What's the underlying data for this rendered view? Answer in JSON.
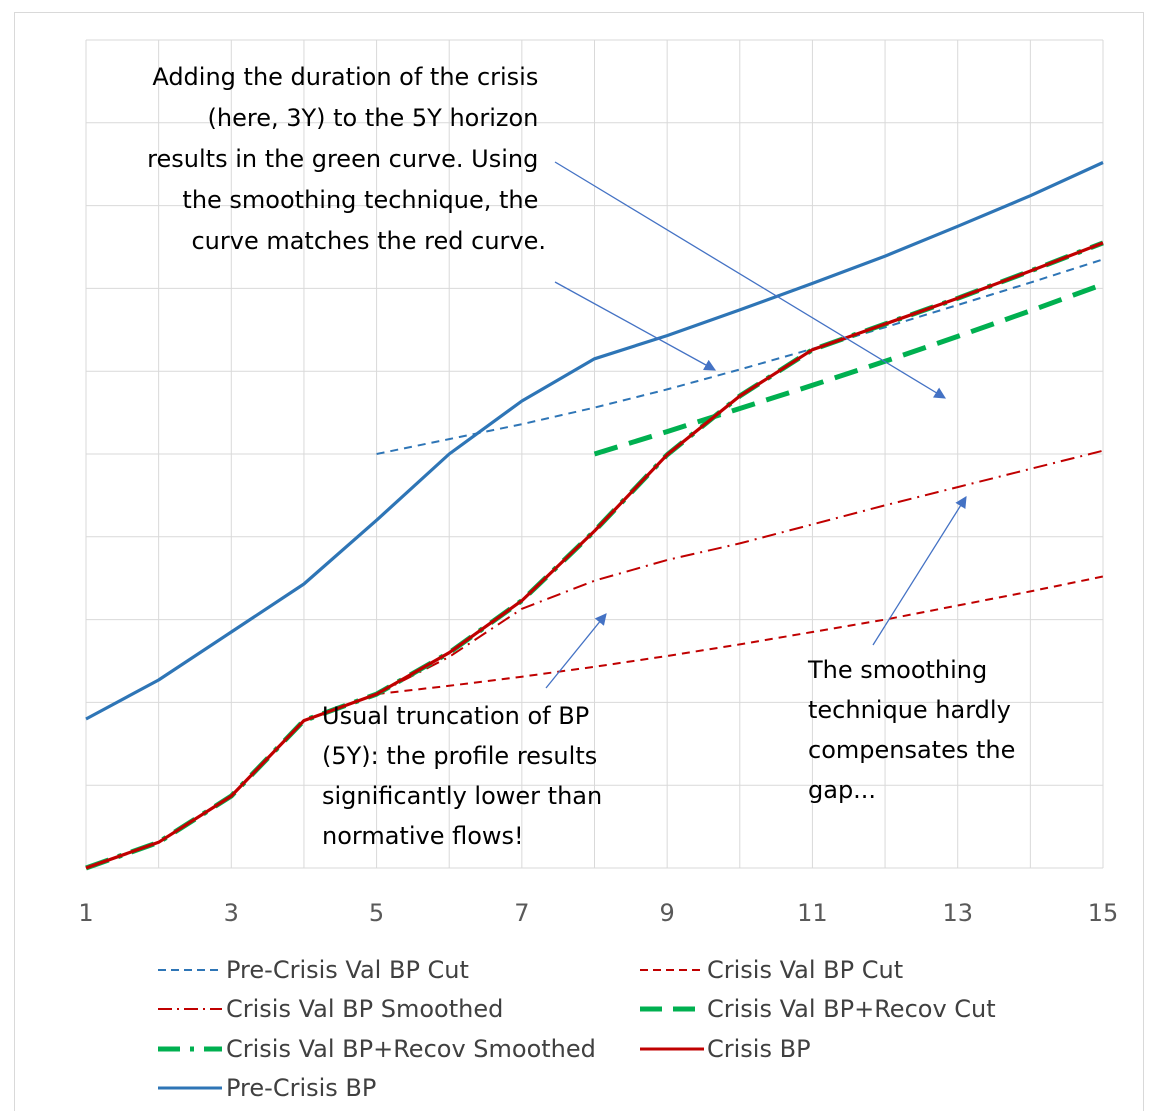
{
  "chart_data": {
    "type": "line",
    "title": "",
    "xlabel": "",
    "ylabel": "",
    "xlim": [
      1,
      15
    ],
    "ylim": [
      0,
      10
    ],
    "x_ticks": [
      "1",
      "3",
      "5",
      "7",
      "9",
      "11",
      "13",
      "15"
    ],
    "grid": true,
    "legend_position": "bottom",
    "series": [
      {
        "name": "Pre-Crisis Val BP Cut",
        "color": "#2e75b6",
        "style": "dashed",
        "x": [
          5,
          6,
          7,
          8,
          9,
          10,
          11,
          12,
          13,
          14,
          15
        ],
        "y": [
          5.0,
          5.18,
          5.36,
          5.56,
          5.78,
          6.02,
          6.27,
          6.53,
          6.8,
          7.07,
          7.35
        ]
      },
      {
        "name": "Crisis Val BP Cut",
        "color": "#c00000",
        "style": "dashed",
        "x": [
          5,
          6,
          7,
          8,
          9,
          10,
          11,
          12,
          13,
          14,
          15
        ],
        "y": [
          2.1,
          2.2,
          2.31,
          2.43,
          2.56,
          2.7,
          2.85,
          3.0,
          3.17,
          3.34,
          3.52
        ]
      },
      {
        "name": "Crisis Val BP Smoothed",
        "color": "#c00000",
        "style": "dashdot",
        "x": [
          5,
          6,
          7,
          8,
          9,
          10,
          11,
          12,
          13,
          14,
          15
        ],
        "y": [
          2.1,
          2.55,
          3.13,
          3.47,
          3.72,
          3.92,
          4.15,
          4.38,
          4.6,
          4.82,
          5.04
        ]
      },
      {
        "name": "Crisis Val BP+Recov Cut",
        "color": "#00b050",
        "style": "dashed-thick",
        "x": [
          8,
          9,
          10,
          11,
          12,
          13,
          14,
          15
        ],
        "y": [
          5.0,
          5.27,
          5.55,
          5.83,
          6.12,
          6.42,
          6.73,
          7.05
        ]
      },
      {
        "name": "Crisis Val BP+Recov Smoothed",
        "color": "#00b050",
        "style": "dashdot-thick",
        "x": [
          1,
          2,
          3,
          4,
          5,
          6,
          7,
          8,
          9,
          10,
          11,
          12,
          13,
          14,
          15
        ],
        "y": [
          0.0,
          0.31,
          0.87,
          1.78,
          2.1,
          2.6,
          3.23,
          4.07,
          4.99,
          5.7,
          6.26,
          6.57,
          6.88,
          7.21,
          7.55
        ]
      },
      {
        "name": "Crisis BP",
        "color": "#c00000",
        "style": "solid",
        "x": [
          1,
          2,
          3,
          4,
          5,
          6,
          7,
          8,
          9,
          10,
          11,
          12,
          13,
          14,
          15
        ],
        "y": [
          0.0,
          0.31,
          0.87,
          1.78,
          2.1,
          2.6,
          3.23,
          4.07,
          4.99,
          5.7,
          6.26,
          6.57,
          6.88,
          7.21,
          7.55
        ]
      },
      {
        "name": "Pre-Crisis BP",
        "color": "#2e75b6",
        "style": "solid",
        "x": [
          1,
          2,
          3,
          4,
          5,
          6,
          7,
          8,
          9,
          10,
          11,
          12,
          13,
          14,
          15
        ],
        "y": [
          1.8,
          2.27,
          2.85,
          3.43,
          4.2,
          5.0,
          5.64,
          6.15,
          6.43,
          6.74,
          7.06,
          7.39,
          7.75,
          8.12,
          8.52
        ]
      }
    ],
    "annotations": [
      {
        "id": "green",
        "lines": [
          "Adding the duration of the crisis",
          "(here, 3Y) to the 5Y horizon",
          "results in the green curve. Using",
          "the smoothing technique, the",
          "curve matches the red curve."
        ],
        "align": "right"
      },
      {
        "id": "truncation",
        "lines": [
          "Usual truncation of BP",
          "(5Y): the profile results",
          "significantly lower than",
          "normative flows!"
        ],
        "align": "left"
      },
      {
        "id": "smoothing",
        "lines": [
          "The smoothing",
          "technique hardly",
          "compensates the",
          "gap..."
        ],
        "align": "left"
      }
    ]
  }
}
